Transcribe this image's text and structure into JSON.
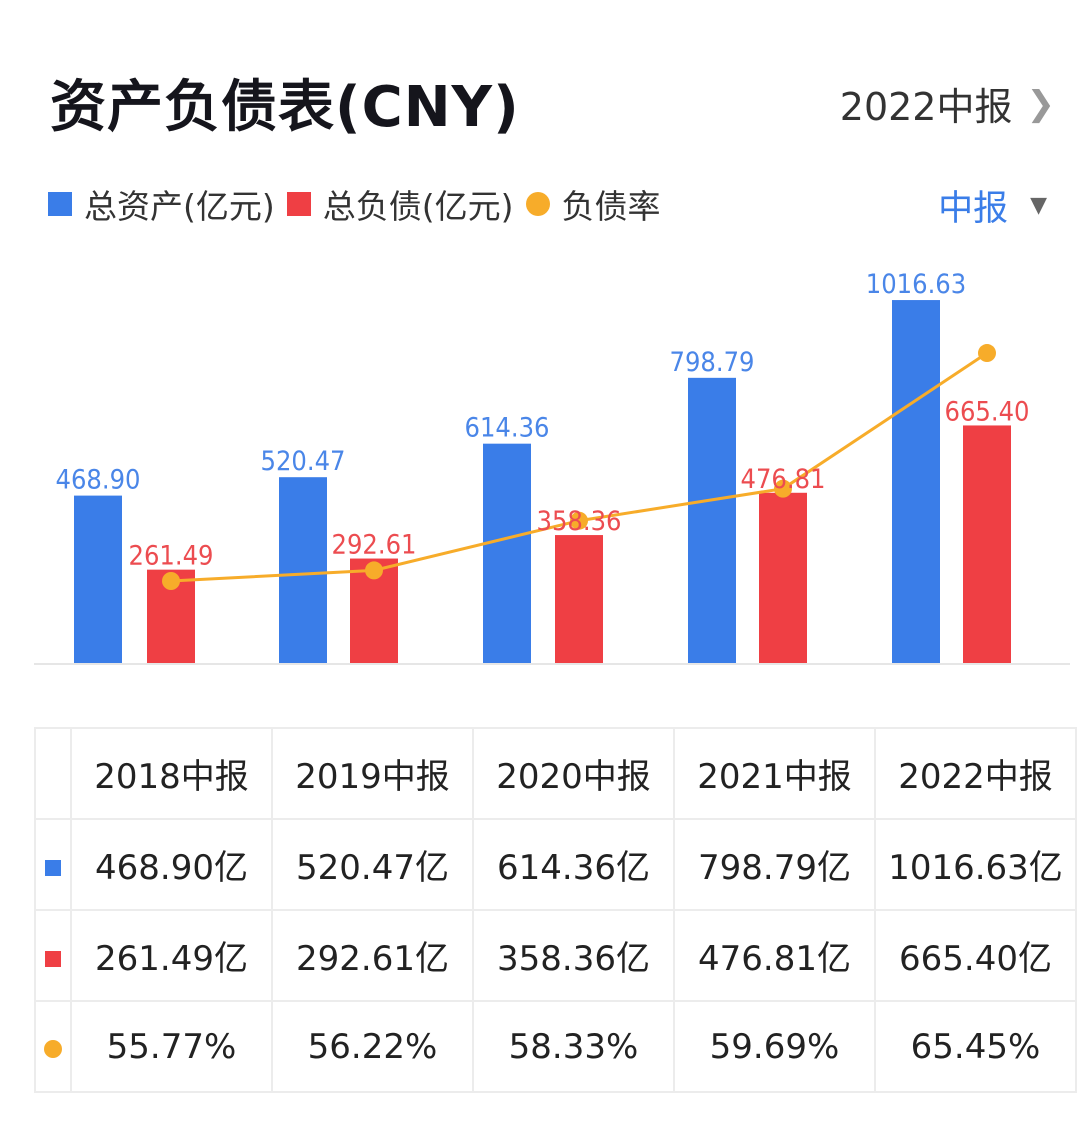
{
  "header": {
    "title": "资产负债表(CNY)",
    "period_link": "2022中报",
    "chevron_icon": "chevron-right-icon"
  },
  "legend": {
    "items": [
      {
        "label": "总资产(亿元)",
        "color": "#3a7de8",
        "shape": "square"
      },
      {
        "label": "总负债(亿元)",
        "color": "#ef3f44",
        "shape": "square"
      },
      {
        "label": "负债率",
        "color": "#f7ac2a",
        "shape": "circle"
      }
    ]
  },
  "period_select": {
    "value": "中报",
    "color": "#3a7de8",
    "icon": "caret-down-icon"
  },
  "chart_data": {
    "type": "bar",
    "title": "资产负债表(CNY)",
    "xlabel": "",
    "ylabel": "",
    "grid": false,
    "legend_position": "top-left",
    "categories": [
      "2018中报",
      "2019中报",
      "2020中报",
      "2021中报",
      "2022中报"
    ],
    "series": [
      {
        "name": "总资产(亿元)",
        "type": "bar",
        "color": "#3a7de8",
        "values": [
          468.9,
          520.47,
          614.36,
          798.79,
          1016.63
        ],
        "labels": [
          "468.90",
          "520.47",
          "614.36",
          "798.79",
          "1016.63"
        ]
      },
      {
        "name": "总负债(亿元)",
        "type": "bar",
        "color": "#ef3f44",
        "values": [
          261.49,
          292.61,
          358.36,
          476.81,
          665.4
        ],
        "labels": [
          "261.49",
          "292.61",
          "358.36",
          "476.81",
          "665.40"
        ]
      },
      {
        "name": "负债率",
        "type": "line",
        "color": "#f7ac2a",
        "unit": "%",
        "values": [
          55.77,
          56.22,
          58.33,
          59.69,
          65.45
        ]
      }
    ]
  },
  "table": {
    "headers": [
      "2018中报",
      "2019中报",
      "2020中报",
      "2021中报",
      "2022中报"
    ],
    "rows": [
      {
        "marker": "square",
        "color": "#3a7de8",
        "cells": [
          "468.90亿",
          "520.47亿",
          "614.36亿",
          "798.79亿",
          "1016.63亿"
        ]
      },
      {
        "marker": "square",
        "color": "#ef3f44",
        "cells": [
          "261.49亿",
          "292.61亿",
          "358.36亿",
          "476.81亿",
          "665.40亿"
        ]
      },
      {
        "marker": "circle",
        "color": "#f7ac2a",
        "cells": [
          "55.77%",
          "56.22%",
          "58.33%",
          "59.69%",
          "65.45%"
        ]
      }
    ]
  }
}
